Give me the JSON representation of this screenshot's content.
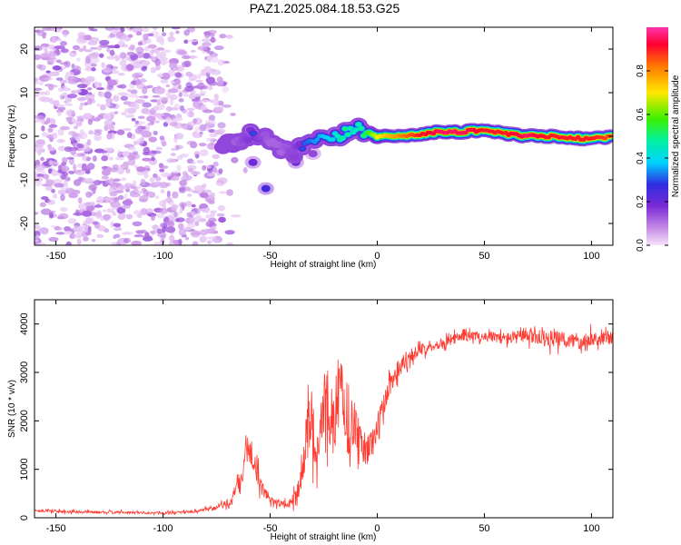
{
  "title": "PAZ1.2025.084.18.53.G25",
  "colors": {
    "snr_line": "#ff3a30",
    "colormap": [
      "#f6e2fb",
      "#c58ae6",
      "#7a2ad6",
      "#2d2de0",
      "#00d4ff",
      "#00f0a0",
      "#3cf000",
      "#ffe800",
      "#ff7a00",
      "#ff0030",
      "#ff33aa"
    ]
  },
  "chart_data": [
    {
      "type": "heatmap",
      "title": "PAZ1.2025.084.18.53.G25",
      "xlabel": "Height of straight line (km)",
      "ylabel": "Frequency (Hz)",
      "xlim": [
        -160,
        110
      ],
      "ylim": [
        -25,
        25
      ],
      "x_ticks": [
        -150,
        -100,
        -50,
        0,
        50,
        100
      ],
      "y_ticks": [
        -20,
        -10,
        0,
        10,
        20
      ],
      "grid": false,
      "colorbar": {
        "label": "Normalized spectral amplitude",
        "range": [
          0,
          1
        ],
        "ticks": [
          "0.0",
          "0.2",
          "0.4",
          "0.6",
          "0.8"
        ],
        "tick_values": [
          0.0,
          0.2,
          0.4,
          0.6,
          0.8
        ]
      },
      "noise_region": {
        "x": [
          -160,
          -72
        ],
        "y": [
          -25,
          25
        ],
        "amplitude": [
          0.02,
          0.15
        ]
      },
      "ridge": [
        {
          "x": -72,
          "y": -2.5,
          "a": 0.15
        },
        {
          "x": -65,
          "y": -1,
          "a": 0.22
        },
        {
          "x": -58,
          "y": 0.5,
          "a": 0.3
        },
        {
          "x": -50,
          "y": -1,
          "a": 0.2
        },
        {
          "x": -45,
          "y": -3,
          "a": 0.2
        },
        {
          "x": -40,
          "y": -4.5,
          "a": 0.25
        },
        {
          "x": -35,
          "y": -2,
          "a": 0.3
        },
        {
          "x": -28,
          "y": -1,
          "a": 0.35
        },
        {
          "x": -22,
          "y": -1,
          "a": 0.4
        },
        {
          "x": -15,
          "y": 0.5,
          "a": 0.5
        },
        {
          "x": -10,
          "y": 2,
          "a": 0.45
        },
        {
          "x": -5,
          "y": 1,
          "a": 0.55
        },
        {
          "x": 0,
          "y": 0,
          "a": 0.7
        },
        {
          "x": 10,
          "y": 0,
          "a": 0.8
        },
        {
          "x": 20,
          "y": 0.5,
          "a": 0.9
        },
        {
          "x": 30,
          "y": 1,
          "a": 0.95
        },
        {
          "x": 40,
          "y": 1,
          "a": 0.95
        },
        {
          "x": 50,
          "y": 1.5,
          "a": 0.9
        },
        {
          "x": 60,
          "y": 0.5,
          "a": 0.9
        },
        {
          "x": 70,
          "y": 0,
          "a": 0.95
        },
        {
          "x": 80,
          "y": 0,
          "a": 0.9
        },
        {
          "x": 90,
          "y": -0.5,
          "a": 0.9
        },
        {
          "x": 100,
          "y": -0.5,
          "a": 0.9
        },
        {
          "x": 110,
          "y": 0,
          "a": 0.85
        }
      ],
      "features": [
        {
          "x": -52,
          "y": -12,
          "a": 0.25
        },
        {
          "x": -58,
          "y": -6,
          "a": 0.2
        },
        {
          "x": -38,
          "y": -6,
          "a": 0.2
        },
        {
          "x": -30,
          "y": -4,
          "a": 0.15
        }
      ]
    },
    {
      "type": "line",
      "xlabel": "Height of straight line (km)",
      "ylabel": "SNR (10 * v/v)",
      "xlim": [
        -160,
        110
      ],
      "ylim": [
        0,
        4500
      ],
      "x_ticks": [
        -150,
        -100,
        -50,
        0,
        50,
        100
      ],
      "y_ticks": [
        0,
        1000,
        2000,
        3000,
        4000
      ],
      "grid": false,
      "series": [
        {
          "x": [
            -160,
            -140,
            -120,
            -100,
            -85,
            -75,
            -68,
            -63,
            -60,
            -57,
            -54,
            -50,
            -46,
            -42,
            -38,
            -35,
            -32,
            -30,
            -28,
            -26,
            -24,
            -20,
            -17,
            -14,
            -10,
            -8,
            -5,
            -2,
            0,
            3,
            6,
            10,
            15,
            20,
            25,
            30,
            35,
            40,
            50,
            60,
            70,
            80,
            90,
            100,
            110
          ],
          "y": [
            150,
            120,
            110,
            100,
            130,
            200,
            350,
            800,
            1500,
            1100,
            600,
            400,
            300,
            250,
            450,
            900,
            2200,
            1800,
            1200,
            2000,
            2500,
            1800,
            2800,
            1800,
            2000,
            1500,
            1400,
            1600,
            1800,
            2300,
            2800,
            3100,
            3350,
            3450,
            3550,
            3600,
            3700,
            3750,
            3750,
            3700,
            3750,
            3700,
            3650,
            3700,
            3700
          ],
          "noise": [
            60,
            60,
            50,
            50,
            60,
            100,
            200,
            500,
            700,
            500,
            300,
            200,
            150,
            150,
            300,
            700,
            1200,
            1100,
            900,
            1300,
            1500,
            1200,
            1400,
            1100,
            1000,
            800,
            700,
            700,
            700,
            600,
            500,
            400,
            300,
            250,
            200,
            200,
            200,
            200,
            200,
            250,
            300,
            350,
            350,
            300,
            300
          ]
        }
      ]
    }
  ]
}
